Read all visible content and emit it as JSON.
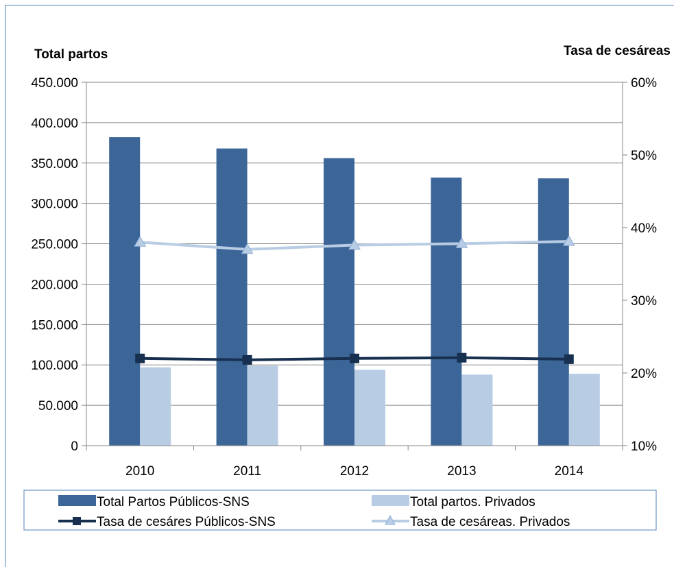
{
  "chart_data": {
    "type": "bar",
    "categories": [
      "2010",
      "2011",
      "2012",
      "2013",
      "2014"
    ],
    "y_left": {
      "title": "Total partos",
      "ylim": [
        0,
        450000
      ],
      "ticks": [
        0,
        50000,
        100000,
        150000,
        200000,
        250000,
        300000,
        350000,
        400000,
        450000
      ],
      "tick_labels": [
        "0",
        "50.000",
        "100.000",
        "150.000",
        "200.000",
        "250.000",
        "300.000",
        "350.000",
        "400.000",
        "450.000"
      ]
    },
    "y_right": {
      "title": "Tasa de cesáreas",
      "ylim": [
        0.1,
        0.6
      ],
      "ticks": [
        0.1,
        0.2,
        0.3,
        0.4,
        0.5,
        0.6
      ],
      "tick_labels": [
        "10%",
        "20%",
        "30%",
        "40%",
        "50%",
        "60%"
      ]
    },
    "series": [
      {
        "name": "Total Partos Públicos-SNS",
        "kind": "bar",
        "axis": "left",
        "color": "#3d6698",
        "values": [
          382000,
          368000,
          356000,
          332000,
          331000
        ]
      },
      {
        "name": "Total partos. Privados",
        "kind": "bar",
        "axis": "left",
        "color": "#b8cde4",
        "values": [
          97000,
          99000,
          94000,
          88000,
          89000
        ]
      },
      {
        "name": "Tasa de cesáres Públicos-SNS",
        "kind": "line",
        "axis": "right",
        "color": "#17304f",
        "marker": "square",
        "values": [
          0.22,
          0.218,
          0.22,
          0.221,
          0.219
        ]
      },
      {
        "name": "Tasa de cesáreas. Privados",
        "kind": "line",
        "axis": "right",
        "color": "#b8cde4",
        "marker": "triangle",
        "values": [
          0.38,
          0.37,
          0.376,
          0.378,
          0.381
        ]
      }
    ],
    "grid": true,
    "legend_position": "bottom"
  }
}
